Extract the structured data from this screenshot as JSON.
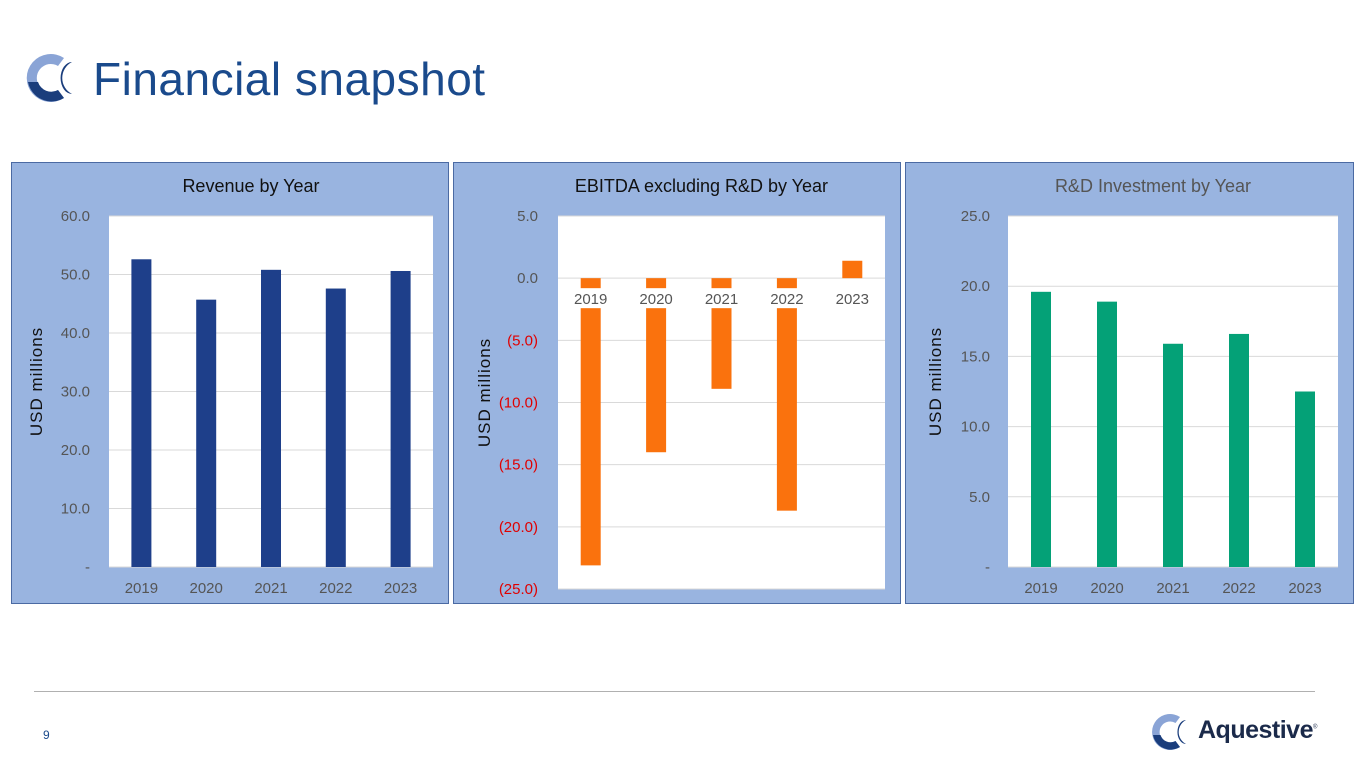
{
  "page": {
    "title": "Financial snapshot",
    "page_number": "9"
  },
  "brand": {
    "name": "Aquestive",
    "reg_mark": "®"
  },
  "colors": {
    "title": "#1a4a8c",
    "panel_bg": "#99b4e0",
    "revenue": "#1e3f8a",
    "ebitda": "#fa720d",
    "rnd": "#04a177",
    "negative_label": "#e00000"
  },
  "chart_data": [
    {
      "id": "revenue",
      "type": "bar",
      "title": "Revenue by Year",
      "ylabel": "USD millions",
      "categories": [
        "2019",
        "2020",
        "2021",
        "2022",
        "2023"
      ],
      "values": [
        52.6,
        45.7,
        50.8,
        47.6,
        50.6
      ],
      "ylim": [
        0,
        60
      ],
      "yticks": [
        0,
        10,
        20,
        30,
        40,
        50,
        60
      ],
      "ytick_labels": [
        "-",
        "10.0",
        "20.0",
        "30.0",
        "40.0",
        "50.0",
        "60.0"
      ],
      "color": "#1e3f8a",
      "grid": true
    },
    {
      "id": "ebitda",
      "type": "bar",
      "title": "EBITDA excluding R&D by Year",
      "ylabel": "USD millions",
      "categories": [
        "2019",
        "2020",
        "2021",
        "2022",
        "2023"
      ],
      "values": [
        -23.1,
        -14.0,
        -8.9,
        -18.7,
        1.4
      ],
      "ylim": [
        -25,
        5
      ],
      "yticks": [
        -25,
        -20,
        -15,
        -10,
        -5,
        0,
        5
      ],
      "ytick_labels": [
        "(25.0)",
        "(20.0)",
        "(15.0)",
        "(10.0)",
        "(5.0)",
        "0.0",
        "5.0"
      ],
      "color": "#fa720d",
      "category_labels_at_zero": true,
      "grid": true
    },
    {
      "id": "rnd",
      "type": "bar",
      "title": "R&D Investment by Year",
      "ylabel": "USD millions",
      "categories": [
        "2019",
        "2020",
        "2021",
        "2022",
        "2023"
      ],
      "values": [
        19.6,
        18.9,
        15.9,
        16.6,
        12.5
      ],
      "ylim": [
        0,
        25
      ],
      "yticks": [
        0,
        5,
        10,
        15,
        20,
        25
      ],
      "ytick_labels": [
        "-",
        "5.0",
        "10.0",
        "15.0",
        "20.0",
        "25.0"
      ],
      "color": "#04a177",
      "grid": true
    }
  ]
}
